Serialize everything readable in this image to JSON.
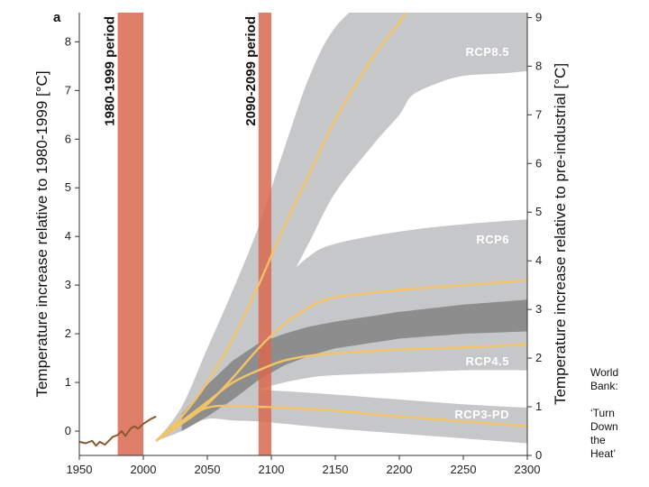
{
  "chart_data": {
    "type": "area",
    "panel_label": "a",
    "xlim": [
      1950,
      2300
    ],
    "ylim_left": [
      -0.5,
      8.6
    ],
    "ylim_right": [
      0,
      9.1
    ],
    "x_ticks": [
      1950,
      2000,
      2050,
      2100,
      2150,
      2200,
      2250,
      2300
    ],
    "y_ticks_left": [
      0,
      1,
      2,
      3,
      4,
      5,
      6,
      7,
      8
    ],
    "y_ticks_right": [
      0,
      1,
      2,
      3,
      4,
      5,
      6,
      7,
      8,
      9
    ],
    "ylabel_left": "Temperature increase relative to 1980-1999 [°C]",
    "ylabel_right": "Temperature increase relative to pre-industrial [°C]",
    "right_axis_offset": 0.5,
    "periods": [
      {
        "label": "1980-1999 period",
        "x_range": [
          1980,
          2000
        ]
      },
      {
        "label": "2090-2099 period",
        "x_range": [
          2090,
          2100
        ]
      }
    ],
    "historical": {
      "x": [
        1950,
        1955,
        1960,
        1963,
        1966,
        1970,
        1973,
        1976,
        1980,
        1983,
        1986,
        1990,
        1993,
        1996,
        2000,
        2003,
        2006,
        2010
      ],
      "values": [
        -0.22,
        -0.25,
        -0.2,
        -0.3,
        -0.22,
        -0.28,
        -0.2,
        -0.12,
        -0.08,
        0.0,
        -0.1,
        0.05,
        0.1,
        0.05,
        0.15,
        0.2,
        0.25,
        0.3
      ]
    },
    "series": [
      {
        "name": "RCP8.5",
        "x": [
          2010,
          2030,
          2050,
          2070,
          2090,
          2110,
          2130,
          2150,
          2180,
          2200,
          2210
        ],
        "values": [
          0.3,
          0.8,
          1.5,
          2.4,
          3.5,
          4.7,
          5.8,
          6.9,
          8.2,
          8.9,
          9.3
        ],
        "upper": [
          0.3,
          1.0,
          2.2,
          3.4,
          4.7,
          6.3,
          7.8,
          8.8,
          9.5,
          9.8,
          9.8
        ],
        "lower": [
          0.3,
          0.6,
          1.0,
          1.8,
          2.5,
          3.4,
          4.4,
          5.4,
          6.4,
          7.0,
          7.4
        ],
        "lower_ext": {
          "x": [
            2210,
            2230,
            2250,
            2280,
            2300
          ],
          "values": [
            7.4,
            7.65,
            7.8,
            7.85,
            7.9
          ]
        },
        "upper_ext": {
          "x": [
            2210,
            2300
          ],
          "values": [
            9.8,
            9.8
          ]
        },
        "label_value": 8.3
      },
      {
        "name": "RCP6",
        "x": [
          2010,
          2030,
          2050,
          2070,
          2090,
          2110,
          2130,
          2150,
          2200,
          2250,
          2300
        ],
        "values": [
          0.3,
          0.65,
          1.05,
          1.6,
          2.2,
          2.7,
          3.05,
          3.25,
          3.4,
          3.5,
          3.6
        ],
        "upper": [
          0.3,
          0.8,
          1.4,
          2.1,
          2.9,
          3.6,
          4.1,
          4.35,
          4.6,
          4.75,
          4.85
        ],
        "lower": [
          0.3,
          0.5,
          0.8,
          1.15,
          1.55,
          1.85,
          2.05,
          2.2,
          2.4,
          2.5,
          2.55
        ],
        "label_value": 4.45
      },
      {
        "name": "RCP4.5",
        "x": [
          2010,
          2030,
          2050,
          2070,
          2090,
          2110,
          2130,
          2150,
          2200,
          2250,
          2300
        ],
        "values": [
          0.3,
          0.7,
          1.1,
          1.5,
          1.75,
          1.95,
          2.05,
          2.1,
          2.18,
          2.22,
          2.28
        ],
        "upper": [
          0.3,
          0.85,
          1.45,
          1.95,
          2.3,
          2.5,
          2.65,
          2.75,
          2.95,
          3.1,
          3.2
        ],
        "lower": [
          0.3,
          0.55,
          0.85,
          1.15,
          1.35,
          1.5,
          1.6,
          1.65,
          1.7,
          1.75,
          1.75
        ],
        "label_value": 1.95
      },
      {
        "name": "RCP3-PD",
        "x": [
          2010,
          2030,
          2050,
          2070,
          2090,
          2110,
          2150,
          2200,
          2250,
          2300
        ],
        "values": [
          0.3,
          0.7,
          0.98,
          1.02,
          1.0,
          0.98,
          0.92,
          0.8,
          0.7,
          0.6
        ],
        "upper": [
          0.3,
          0.85,
          1.25,
          1.35,
          1.35,
          1.32,
          1.25,
          1.15,
          1.05,
          0.98
        ],
        "lower": [
          0.3,
          0.55,
          0.75,
          0.72,
          0.7,
          0.65,
          0.55,
          0.45,
          0.35,
          0.25
        ],
        "label_value": 0.85
      }
    ],
    "colors": {
      "band": "#c6c7c9",
      "band_overlap": "#7a7a7a",
      "line": "#f3c367",
      "period_bar": "#d9684f",
      "historical": "#8a5a2e",
      "label": "#ffffff"
    }
  },
  "credit": {
    "lines": [
      "World",
      "Bank:",
      "",
      "‘Turn",
      "Down",
      "the",
      "Heat’"
    ]
  }
}
